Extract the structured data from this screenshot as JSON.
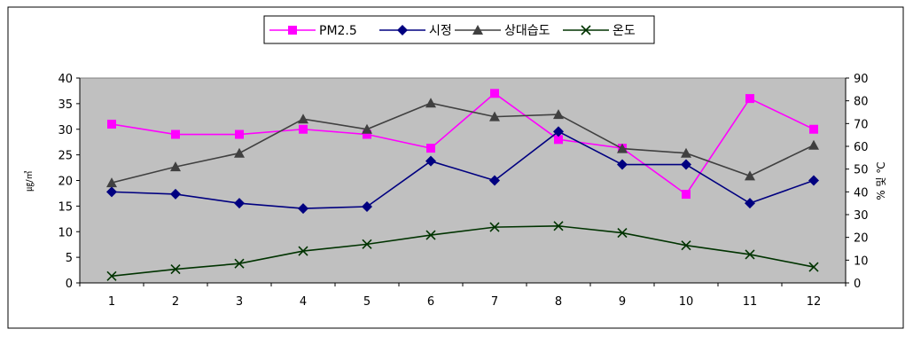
{
  "chart_data": {
    "type": "line",
    "categories": [
      "1",
      "2",
      "3",
      "4",
      "5",
      "6",
      "7",
      "8",
      "9",
      "10",
      "11",
      "12"
    ],
    "y_left": {
      "label": "㎍/㎥",
      "ylim": [
        0,
        40
      ],
      "ticks": [
        "0",
        "5",
        "10",
        "15",
        "20",
        "25",
        "30",
        "35",
        "40"
      ]
    },
    "y_right": {
      "label": "% 및 ℃",
      "ylim": [
        0,
        90
      ],
      "ticks": [
        "0",
        "10",
        "20",
        "30",
        "40",
        "50",
        "60",
        "70",
        "80",
        "90"
      ]
    },
    "grid": false,
    "legend": "top",
    "plot_background": "#c0c0c0",
    "series": [
      {
        "name": "PM2.5",
        "axis": "left",
        "color": "#ff00ff",
        "marker": "square",
        "values": [
          31,
          29,
          29,
          30,
          29,
          26.3,
          37,
          28,
          26.3,
          17.3,
          36,
          30
        ]
      },
      {
        "name": "시정",
        "axis": "right",
        "color": "#000080",
        "marker": "diamond",
        "values": [
          40,
          39,
          35,
          32.7,
          33.5,
          53.5,
          45,
          66.5,
          52,
          52,
          35,
          45
        ]
      },
      {
        "name": "상대습도",
        "axis": "right",
        "color": "#404040",
        "marker": "triangle",
        "values": [
          44,
          51,
          57,
          72,
          67.5,
          79,
          73,
          74,
          59,
          57,
          47,
          60.5
        ]
      },
      {
        "name": "온도",
        "axis": "right",
        "color": "#003300",
        "marker": "x",
        "values": [
          3,
          6,
          8.5,
          14,
          17,
          21,
          24.5,
          25,
          22,
          16.5,
          12.5,
          7
        ]
      }
    ]
  }
}
